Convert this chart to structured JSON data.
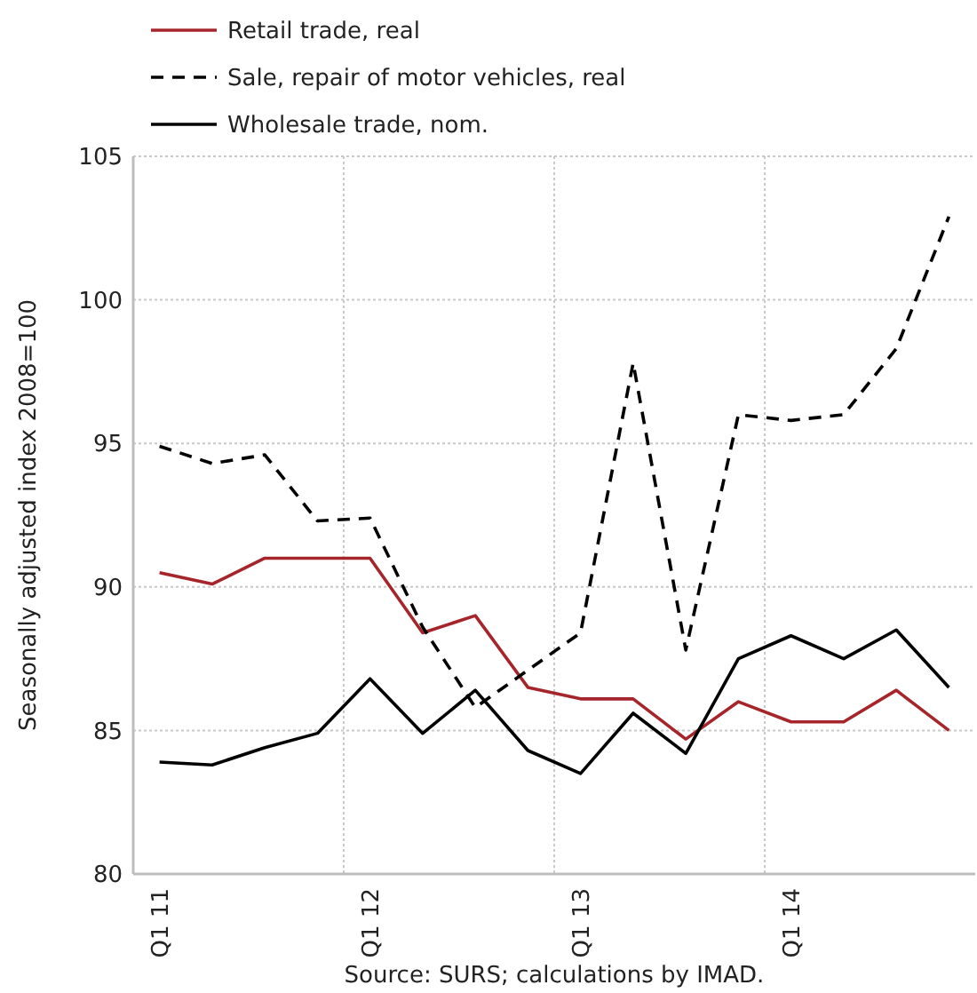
{
  "chart_data": {
    "type": "line",
    "ylabel": "Seasonally adjusted index 2008=100",
    "annotations": [
      "Source: SURS; calculations by IMAD."
    ],
    "categories": [
      "Q1 11",
      null,
      null,
      null,
      "Q1 12",
      null,
      null,
      null,
      "Q1 13",
      null,
      null,
      null,
      "Q1 14",
      null,
      null,
      null
    ],
    "series": [
      {
        "name": "Retail trade, real",
        "color": "#a6252a",
        "line_style": "solid",
        "values": [
          90.5,
          90.1,
          91.0,
          91.0,
          91.0,
          88.4,
          89.0,
          86.5,
          86.1,
          86.1,
          84.7,
          86.0,
          85.3,
          85.3,
          86.4,
          85.0
        ]
      },
      {
        "name": "Sale, repair of motor vehicles, real",
        "color": "#000000",
        "line_style": "dashed",
        "values": [
          94.9,
          94.3,
          94.6,
          92.3,
          92.4,
          88.6,
          85.8,
          87.1,
          88.4,
          97.8,
          87.8,
          96.0,
          95.8,
          96.0,
          98.3,
          102.9
        ]
      },
      {
        "name": "Wholesale trade, nom.",
        "color": "#000000",
        "line_style": "solid",
        "values": [
          83.9,
          83.8,
          84.4,
          84.9,
          86.8,
          84.9,
          86.4,
          84.3,
          83.5,
          85.6,
          84.2,
          87.5,
          88.3,
          87.5,
          88.5,
          86.5
        ]
      }
    ],
    "ylim": [
      80,
      105
    ],
    "yticks": [
      80,
      85,
      90,
      95,
      100,
      105
    ],
    "grid": true,
    "legend": "top",
    "marker": "none"
  }
}
